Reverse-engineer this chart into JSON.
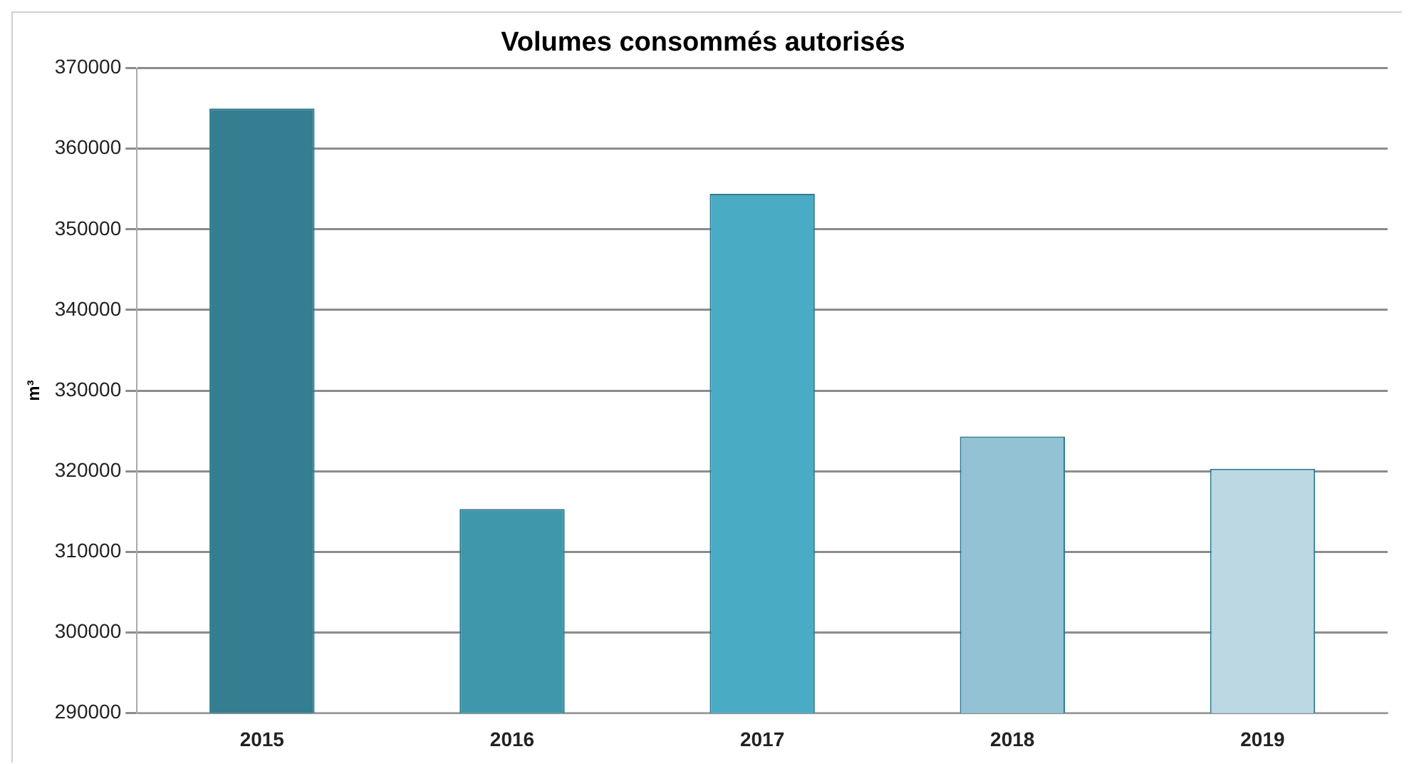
{
  "chart_data": {
    "type": "bar",
    "title": "Volumes consommés autorisés",
    "ylabel": "m³",
    "categories": [
      "2015",
      "2016",
      "2017",
      "2018",
      "2019"
    ],
    "values": [
      365000,
      315300,
      354400,
      324300,
      320300
    ],
    "colors": [
      "#357d91",
      "#3f97ab",
      "#4aabc4",
      "#92c2d3",
      "#bbd8e3"
    ],
    "ylim": [
      290000,
      370000
    ],
    "yticks": [
      290000,
      300000,
      310000,
      320000,
      330000,
      340000,
      350000,
      360000,
      370000
    ],
    "grid": "y"
  }
}
